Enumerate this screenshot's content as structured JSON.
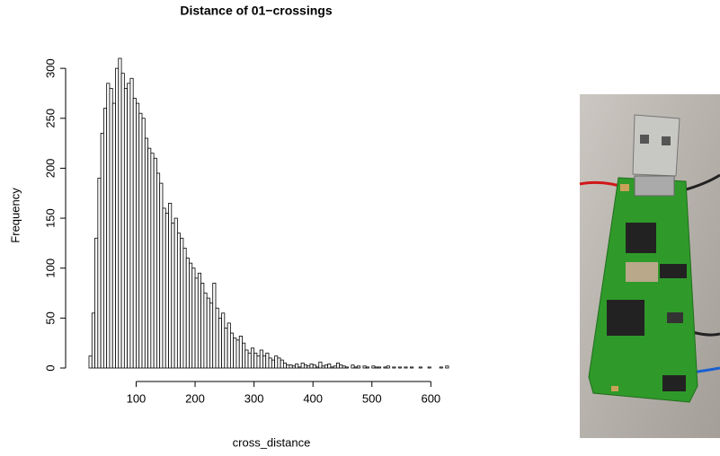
{
  "chart_data": {
    "type": "histogram",
    "title": "Distance of 01−crossings",
    "x_label": "cross_distance",
    "y_label": "Frequency",
    "bins": [
      20,
      25,
      30,
      35,
      40,
      45,
      50,
      55,
      60,
      65,
      70,
      75,
      80,
      85,
      90,
      95,
      100,
      105,
      110,
      115,
      120,
      125,
      130,
      135,
      140,
      145,
      150,
      155,
      160,
      165,
      170,
      175,
      180,
      185,
      190,
      195,
      200,
      205,
      210,
      215,
      220,
      225,
      230,
      235,
      240,
      245,
      250,
      255,
      260,
      265,
      270,
      275,
      280,
      285,
      290,
      295,
      300,
      305,
      310,
      315,
      320,
      325,
      330,
      335,
      340,
      345,
      350,
      355,
      360,
      365,
      370,
      375,
      380,
      385,
      390,
      395,
      400,
      405,
      410,
      415,
      420,
      425,
      430,
      435,
      440,
      445,
      450,
      455,
      460,
      465,
      470,
      475,
      480,
      485,
      490,
      495,
      500,
      505,
      510,
      515,
      520,
      525,
      530,
      535,
      540,
      545,
      550,
      555,
      560,
      565,
      570,
      575,
      580,
      585,
      590,
      595,
      600,
      605,
      610,
      615,
      620,
      625,
      630
    ],
    "values": [
      12,
      55,
      130,
      190,
      235,
      260,
      285,
      280,
      265,
      300,
      310,
      295,
      280,
      285,
      290,
      270,
      265,
      255,
      250,
      230,
      220,
      215,
      210,
      195,
      185,
      160,
      155,
      165,
      145,
      150,
      135,
      130,
      120,
      110,
      105,
      100,
      90,
      95,
      85,
      75,
      70,
      65,
      85,
      60,
      50,
      55,
      40,
      45,
      35,
      30,
      28,
      32,
      25,
      18,
      15,
      20,
      15,
      12,
      18,
      12,
      15,
      10,
      8,
      12,
      10,
      8,
      5,
      3,
      3,
      2,
      4,
      1,
      5,
      3,
      2,
      4,
      3,
      1,
      6,
      2,
      3,
      4,
      1,
      2,
      5,
      3,
      2,
      1,
      0,
      3,
      1,
      2,
      0,
      2,
      1,
      0,
      2,
      1,
      1,
      0,
      1,
      2,
      0,
      1,
      0,
      1,
      0,
      1,
      0,
      1,
      0,
      0,
      1,
      0,
      0,
      1,
      0,
      0,
      0,
      1,
      0,
      2
    ],
    "xlim": [
      20,
      630
    ],
    "ylim": [
      0,
      310
    ],
    "xticks": [
      100,
      200,
      300,
      400,
      500,
      600
    ],
    "yticks": [
      0,
      50,
      100,
      150,
      200,
      250,
      300
    ]
  }
}
